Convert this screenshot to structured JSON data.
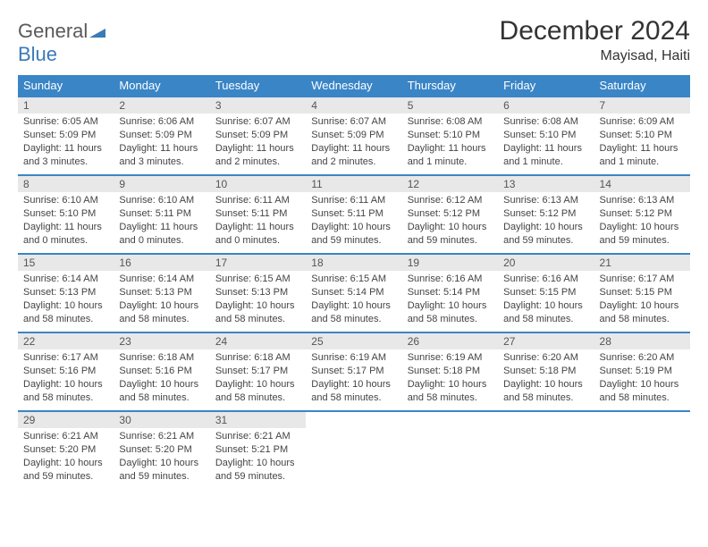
{
  "logo": {
    "word1": "General",
    "word2": "Blue"
  },
  "title": "December 2024",
  "location": "Mayisad, Haiti",
  "colors": {
    "header_bg": "#3a85c6",
    "header_fg": "#ffffff",
    "daynum_bg": "#e8e8e8",
    "row_border": "#3a85c6",
    "logo_gray": "#5a5a5a",
    "logo_blue": "#3a7ab8"
  },
  "weekdays": [
    "Sunday",
    "Monday",
    "Tuesday",
    "Wednesday",
    "Thursday",
    "Friday",
    "Saturday"
  ],
  "weeks": [
    [
      {
        "n": "1",
        "sr": "Sunrise: 6:05 AM",
        "ss": "Sunset: 5:09 PM",
        "d1": "Daylight: 11 hours",
        "d2": "and 3 minutes."
      },
      {
        "n": "2",
        "sr": "Sunrise: 6:06 AM",
        "ss": "Sunset: 5:09 PM",
        "d1": "Daylight: 11 hours",
        "d2": "and 3 minutes."
      },
      {
        "n": "3",
        "sr": "Sunrise: 6:07 AM",
        "ss": "Sunset: 5:09 PM",
        "d1": "Daylight: 11 hours",
        "d2": "and 2 minutes."
      },
      {
        "n": "4",
        "sr": "Sunrise: 6:07 AM",
        "ss": "Sunset: 5:09 PM",
        "d1": "Daylight: 11 hours",
        "d2": "and 2 minutes."
      },
      {
        "n": "5",
        "sr": "Sunrise: 6:08 AM",
        "ss": "Sunset: 5:10 PM",
        "d1": "Daylight: 11 hours",
        "d2": "and 1 minute."
      },
      {
        "n": "6",
        "sr": "Sunrise: 6:08 AM",
        "ss": "Sunset: 5:10 PM",
        "d1": "Daylight: 11 hours",
        "d2": "and 1 minute."
      },
      {
        "n": "7",
        "sr": "Sunrise: 6:09 AM",
        "ss": "Sunset: 5:10 PM",
        "d1": "Daylight: 11 hours",
        "d2": "and 1 minute."
      }
    ],
    [
      {
        "n": "8",
        "sr": "Sunrise: 6:10 AM",
        "ss": "Sunset: 5:10 PM",
        "d1": "Daylight: 11 hours",
        "d2": "and 0 minutes."
      },
      {
        "n": "9",
        "sr": "Sunrise: 6:10 AM",
        "ss": "Sunset: 5:11 PM",
        "d1": "Daylight: 11 hours",
        "d2": "and 0 minutes."
      },
      {
        "n": "10",
        "sr": "Sunrise: 6:11 AM",
        "ss": "Sunset: 5:11 PM",
        "d1": "Daylight: 11 hours",
        "d2": "and 0 minutes."
      },
      {
        "n": "11",
        "sr": "Sunrise: 6:11 AM",
        "ss": "Sunset: 5:11 PM",
        "d1": "Daylight: 10 hours",
        "d2": "and 59 minutes."
      },
      {
        "n": "12",
        "sr": "Sunrise: 6:12 AM",
        "ss": "Sunset: 5:12 PM",
        "d1": "Daylight: 10 hours",
        "d2": "and 59 minutes."
      },
      {
        "n": "13",
        "sr": "Sunrise: 6:13 AM",
        "ss": "Sunset: 5:12 PM",
        "d1": "Daylight: 10 hours",
        "d2": "and 59 minutes."
      },
      {
        "n": "14",
        "sr": "Sunrise: 6:13 AM",
        "ss": "Sunset: 5:12 PM",
        "d1": "Daylight: 10 hours",
        "d2": "and 59 minutes."
      }
    ],
    [
      {
        "n": "15",
        "sr": "Sunrise: 6:14 AM",
        "ss": "Sunset: 5:13 PM",
        "d1": "Daylight: 10 hours",
        "d2": "and 58 minutes."
      },
      {
        "n": "16",
        "sr": "Sunrise: 6:14 AM",
        "ss": "Sunset: 5:13 PM",
        "d1": "Daylight: 10 hours",
        "d2": "and 58 minutes."
      },
      {
        "n": "17",
        "sr": "Sunrise: 6:15 AM",
        "ss": "Sunset: 5:13 PM",
        "d1": "Daylight: 10 hours",
        "d2": "and 58 minutes."
      },
      {
        "n": "18",
        "sr": "Sunrise: 6:15 AM",
        "ss": "Sunset: 5:14 PM",
        "d1": "Daylight: 10 hours",
        "d2": "and 58 minutes."
      },
      {
        "n": "19",
        "sr": "Sunrise: 6:16 AM",
        "ss": "Sunset: 5:14 PM",
        "d1": "Daylight: 10 hours",
        "d2": "and 58 minutes."
      },
      {
        "n": "20",
        "sr": "Sunrise: 6:16 AM",
        "ss": "Sunset: 5:15 PM",
        "d1": "Daylight: 10 hours",
        "d2": "and 58 minutes."
      },
      {
        "n": "21",
        "sr": "Sunrise: 6:17 AM",
        "ss": "Sunset: 5:15 PM",
        "d1": "Daylight: 10 hours",
        "d2": "and 58 minutes."
      }
    ],
    [
      {
        "n": "22",
        "sr": "Sunrise: 6:17 AM",
        "ss": "Sunset: 5:16 PM",
        "d1": "Daylight: 10 hours",
        "d2": "and 58 minutes."
      },
      {
        "n": "23",
        "sr": "Sunrise: 6:18 AM",
        "ss": "Sunset: 5:16 PM",
        "d1": "Daylight: 10 hours",
        "d2": "and 58 minutes."
      },
      {
        "n": "24",
        "sr": "Sunrise: 6:18 AM",
        "ss": "Sunset: 5:17 PM",
        "d1": "Daylight: 10 hours",
        "d2": "and 58 minutes."
      },
      {
        "n": "25",
        "sr": "Sunrise: 6:19 AM",
        "ss": "Sunset: 5:17 PM",
        "d1": "Daylight: 10 hours",
        "d2": "and 58 minutes."
      },
      {
        "n": "26",
        "sr": "Sunrise: 6:19 AM",
        "ss": "Sunset: 5:18 PM",
        "d1": "Daylight: 10 hours",
        "d2": "and 58 minutes."
      },
      {
        "n": "27",
        "sr": "Sunrise: 6:20 AM",
        "ss": "Sunset: 5:18 PM",
        "d1": "Daylight: 10 hours",
        "d2": "and 58 minutes."
      },
      {
        "n": "28",
        "sr": "Sunrise: 6:20 AM",
        "ss": "Sunset: 5:19 PM",
        "d1": "Daylight: 10 hours",
        "d2": "and 58 minutes."
      }
    ],
    [
      {
        "n": "29",
        "sr": "Sunrise: 6:21 AM",
        "ss": "Sunset: 5:20 PM",
        "d1": "Daylight: 10 hours",
        "d2": "and 59 minutes."
      },
      {
        "n": "30",
        "sr": "Sunrise: 6:21 AM",
        "ss": "Sunset: 5:20 PM",
        "d1": "Daylight: 10 hours",
        "d2": "and 59 minutes."
      },
      {
        "n": "31",
        "sr": "Sunrise: 6:21 AM",
        "ss": "Sunset: 5:21 PM",
        "d1": "Daylight: 10 hours",
        "d2": "and 59 minutes."
      },
      null,
      null,
      null,
      null
    ]
  ]
}
